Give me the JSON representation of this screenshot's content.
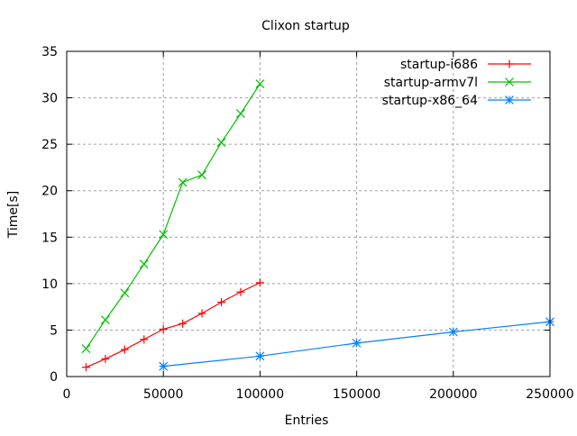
{
  "chart_data": {
    "type": "line",
    "title": "Clixon startup",
    "xlabel": "Entries",
    "ylabel": "Time[s]",
    "xlim": [
      0,
      250000
    ],
    "ylim": [
      0,
      35
    ],
    "xticks": [
      0,
      50000,
      100000,
      150000,
      200000,
      250000
    ],
    "yticks": [
      0,
      5,
      10,
      15,
      20,
      25,
      30,
      35
    ],
    "grid": true,
    "legend_position": "top-right",
    "series": [
      {
        "name": "startup-i686",
        "color": "#ff0000",
        "marker": "plus",
        "x": [
          10000,
          20000,
          30000,
          40000,
          50000,
          60000,
          70000,
          80000,
          90000,
          100000
        ],
        "y": [
          1.0,
          1.9,
          2.9,
          4.0,
          5.1,
          5.7,
          6.8,
          8.0,
          9.1,
          10.1
        ]
      },
      {
        "name": "startup-armv7l",
        "color": "#00c000",
        "marker": "cross",
        "x": [
          10000,
          20000,
          30000,
          40000,
          50000,
          60000,
          70000,
          80000,
          90000,
          100000
        ],
        "y": [
          3.0,
          6.1,
          9.0,
          12.1,
          15.3,
          20.9,
          21.7,
          25.2,
          28.3,
          31.5
        ]
      },
      {
        "name": "startup-x86_64",
        "color": "#0080ff",
        "marker": "star",
        "x": [
          50000,
          100000,
          150000,
          200000,
          250000
        ],
        "y": [
          1.1,
          2.2,
          3.6,
          4.8,
          5.9
        ]
      }
    ]
  }
}
